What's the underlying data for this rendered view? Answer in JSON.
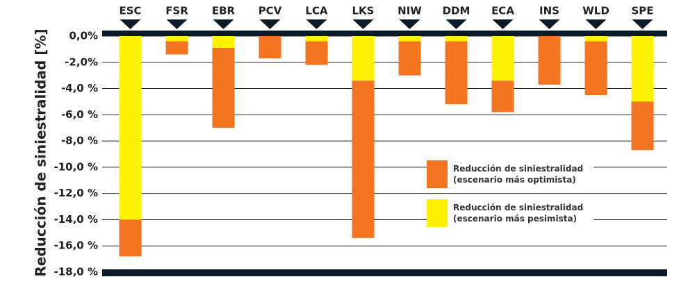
{
  "chart_data": {
    "type": "bar",
    "stacked": true,
    "y_label": "Reducción de siniestralidad [%]",
    "categories": [
      "ESC",
      "FSR",
      "EBR",
      "PCV",
      "LCA",
      "LKS",
      "NIW",
      "DDM",
      "ECA",
      "INS",
      "WLD",
      "SPE"
    ],
    "series": [
      {
        "name": "Reducción de siniestralidad\n(escenario más pesimista)",
        "color": "#fff200",
        "values": [
          -14.0,
          -0.4,
          -0.9,
          0,
          -0.4,
          -3.4,
          -0.4,
          -0.4,
          -3.4,
          0,
          -0.4,
          -5.0
        ]
      },
      {
        "name": "Reducción de siniestralidad\n(escenario más optimista)",
        "color": "#f47521",
        "values": [
          -2.8,
          -1.0,
          -6.1,
          -1.7,
          -1.8,
          -12.0,
          -2.6,
          -4.8,
          -2.4,
          -3.7,
          -4.1,
          -3.7
        ]
      }
    ],
    "ylim": [
      -18,
      0
    ],
    "yticks": [
      {
        "value": 0,
        "label": "0,0%"
      },
      {
        "value": -2,
        "label": "-2,0%"
      },
      {
        "value": -4,
        "label": "-4,0 %"
      },
      {
        "value": -6,
        "label": "-6,0 %"
      },
      {
        "value": -8,
        "label": "-8,0 %"
      },
      {
        "value": -10,
        "label": "-10,0 %"
      },
      {
        "value": -12,
        "label": "-12,0 %"
      },
      {
        "value": -14,
        "label": "-14,0 %"
      },
      {
        "value": -16,
        "label": "-16,0 %"
      },
      {
        "value": -18,
        "label": "-18,0 %"
      }
    ],
    "grid": true
  }
}
